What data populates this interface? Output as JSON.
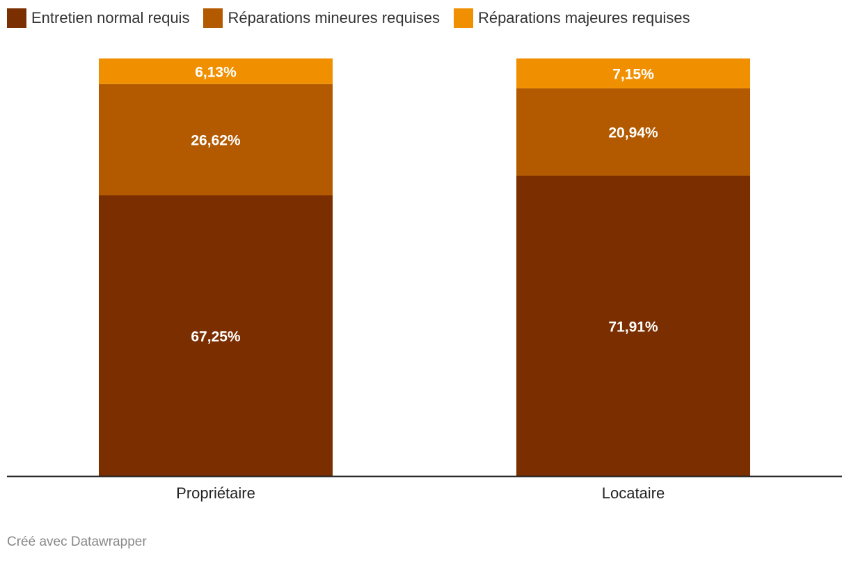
{
  "chart_data": {
    "type": "bar",
    "stacked": true,
    "categories": [
      "Propriétaire",
      "Locataire"
    ],
    "series": [
      {
        "name": "Entretien normal requis",
        "values": [
          67.25,
          71.91
        ],
        "labels": [
          "67,25%",
          "71,91%"
        ],
        "color": "#7b2e00"
      },
      {
        "name": "Réparations mineures requises",
        "values": [
          26.62,
          20.94
        ],
        "labels": [
          "26,62%",
          "20,94%"
        ],
        "color": "#b35a00"
      },
      {
        "name": "Réparations majeures requises",
        "values": [
          6.13,
          7.15
        ],
        "labels": [
          "6,13%",
          "7,15%"
        ],
        "color": "#f09000"
      }
    ],
    "ylim": [
      0,
      100
    ],
    "grid": false,
    "legend_position": "top-left"
  },
  "credit": "Créé avec Datawrapper"
}
